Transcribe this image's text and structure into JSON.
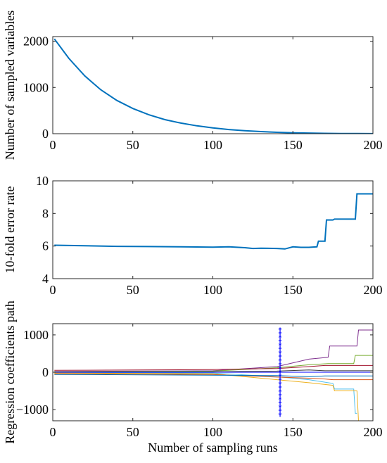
{
  "chart_data": [
    {
      "type": "line",
      "ylabel": "Number of sampled variables",
      "xlabel": "",
      "xlim": [
        0,
        200
      ],
      "ylim": [
        0,
        2100
      ],
      "xticks": [
        "0",
        "50",
        "100",
        "150",
        "200"
      ],
      "yticks": [
        "0",
        "1000",
        "2000"
      ],
      "grid": false,
      "series": [
        {
          "color": "#0072BD",
          "x": [
            1,
            10,
            20,
            30,
            40,
            50,
            60,
            70,
            80,
            90,
            100,
            110,
            120,
            130,
            140,
            150,
            160,
            170,
            180,
            190,
            200
          ],
          "y": [
            2050,
            1630,
            1250,
            950,
            720,
            545,
            410,
            305,
            230,
            170,
            125,
            90,
            65,
            45,
            30,
            20,
            13,
            8,
            5,
            3,
            2
          ]
        }
      ]
    },
    {
      "type": "line",
      "ylabel": "10-fold error rate",
      "xlabel": "",
      "xlim": [
        0,
        200
      ],
      "ylim": [
        4,
        10
      ],
      "xticks": [
        "0",
        "50",
        "100",
        "150",
        "200"
      ],
      "yticks": [
        "4",
        "6",
        "8",
        "10"
      ],
      "grid": false,
      "series": [
        {
          "color": "#0072BD",
          "x": [
            1,
            20,
            40,
            60,
            80,
            100,
            110,
            120,
            125,
            130,
            140,
            145,
            150,
            155,
            160,
            165,
            166,
            170,
            171,
            175,
            176,
            180,
            185,
            189,
            190,
            195,
            200
          ],
          "y": [
            6.05,
            6.02,
            5.98,
            5.97,
            5.95,
            5.93,
            5.95,
            5.9,
            5.85,
            5.87,
            5.85,
            5.82,
            5.95,
            5.92,
            5.92,
            5.95,
            6.3,
            6.3,
            7.6,
            7.6,
            7.65,
            7.65,
            7.65,
            7.65,
            9.2,
            9.2,
            9.2
          ]
        }
      ]
    },
    {
      "type": "line",
      "ylabel": "Regression coefficients path",
      "xlabel": "Number of sampling runs",
      "xlim": [
        0,
        200
      ],
      "ylim": [
        -1300,
        1300
      ],
      "xticks": [
        "0",
        "50",
        "100",
        "150",
        "200"
      ],
      "yticks": [
        "-1000",
        "0",
        "1000"
      ],
      "grid": false,
      "marker_run": 142,
      "marker_color": "#0000FF",
      "series": [
        {
          "color": "#7E2F8E",
          "x": [
            1,
            100,
            140,
            160,
            172,
            173,
            190,
            191,
            200
          ],
          "y": [
            20,
            40,
            150,
            350,
            400,
            700,
            700,
            1130,
            1130
          ]
        },
        {
          "color": "#77AC30",
          "x": [
            1,
            100,
            140,
            160,
            172,
            173,
            188,
            189,
            200
          ],
          "y": [
            10,
            30,
            120,
            200,
            230,
            230,
            230,
            450,
            450
          ]
        },
        {
          "color": "#4DBEEE",
          "x": [
            1,
            100,
            140,
            160,
            175,
            176,
            188,
            189,
            190
          ],
          "y": [
            -10,
            -20,
            -120,
            -200,
            -300,
            -450,
            -450,
            -1100,
            -1100
          ]
        },
        {
          "color": "#EDB120",
          "x": [
            1,
            100,
            140,
            160,
            175,
            176,
            190,
            191,
            192
          ],
          "y": [
            -20,
            -40,
            -200,
            -280,
            -350,
            -500,
            -500,
            -1300,
            -1300
          ]
        },
        {
          "color": "#D95319",
          "x": [
            1,
            100,
            140,
            160,
            170,
            175,
            200
          ],
          "y": [
            -40,
            -60,
            -130,
            -160,
            -180,
            -200,
            -200
          ]
        },
        {
          "color": "#A2142F",
          "x": [
            1,
            100,
            140,
            160,
            170,
            200
          ],
          "y": [
            50,
            70,
            100,
            150,
            180,
            180
          ]
        },
        {
          "color": "#0072BD",
          "x": [
            1,
            100,
            140,
            160,
            170,
            200
          ],
          "y": [
            -60,
            -80,
            -90,
            -120,
            -100,
            -100
          ]
        },
        {
          "color": "#3A3A3A",
          "x": [
            1,
            100,
            140,
            160,
            170,
            200
          ],
          "y": [
            0,
            10,
            30,
            60,
            40,
            40
          ]
        },
        {
          "color": "#0000FF",
          "x": [
            1,
            120,
            140,
            170,
            200
          ],
          "y": [
            0,
            0,
            0,
            0,
            0
          ]
        }
      ]
    }
  ]
}
